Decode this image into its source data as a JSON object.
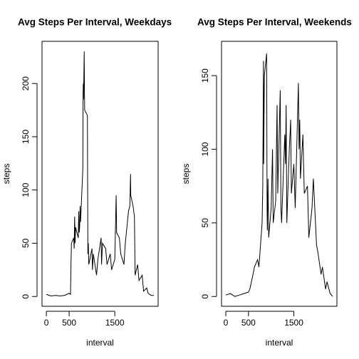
{
  "chart_data": [
    {
      "type": "line",
      "title": "Avg Steps Per Interval, Weekdays",
      "xlabel": "interval",
      "ylabel": "steps",
      "color": "#000000",
      "x": [
        0,
        100,
        200,
        300,
        400,
        500,
        530,
        540,
        550,
        600,
        610,
        620,
        630,
        640,
        700,
        710,
        720,
        730,
        740,
        750,
        800,
        805,
        810,
        815,
        830,
        835,
        840,
        900,
        905,
        910,
        920,
        930,
        1000,
        1010,
        1030,
        1100,
        1130,
        1200,
        1210,
        1230,
        1300,
        1330,
        1400,
        1430,
        1500,
        1530,
        1540,
        1600,
        1630,
        1700,
        1730,
        1800,
        1830,
        1845,
        1850,
        1900,
        1930,
        1945,
        2000,
        2030,
        2100,
        2130,
        2200,
        2230,
        2300,
        2355
      ],
      "values": [
        2,
        0.5,
        1,
        0.5,
        1,
        3,
        2,
        30,
        50,
        55,
        45,
        75,
        50,
        65,
        55,
        80,
        60,
        65,
        85,
        70,
        120,
        190,
        200,
        185,
        230,
        195,
        175,
        170,
        100,
        40,
        50,
        30,
        45,
        25,
        40,
        20,
        35,
        55,
        30,
        50,
        45,
        30,
        40,
        25,
        35,
        95,
        60,
        55,
        40,
        30,
        50,
        80,
        85,
        115,
        95,
        85,
        75,
        20,
        30,
        15,
        20,
        5,
        8,
        3,
        1,
        1
      ],
      "xlim": [
        -94.2,
        2449.2
      ],
      "ylim": [
        -9.2,
        239.6
      ],
      "xticks": [
        0,
        500,
        1500
      ],
      "yticks": [
        0,
        50,
        100,
        150,
        200
      ]
    },
    {
      "type": "line",
      "title": "Avg Steps Per Interval, Weekends",
      "xlabel": "interval",
      "ylabel": "steps",
      "color": "#000000",
      "x": [
        0,
        100,
        200,
        300,
        400,
        500,
        530,
        600,
        630,
        700,
        730,
        800,
        815,
        830,
        835,
        845,
        850,
        900,
        910,
        915,
        930,
        945,
        1000,
        1015,
        1030,
        1045,
        1100,
        1130,
        1145,
        1200,
        1215,
        1230,
        1300,
        1315,
        1330,
        1345,
        1400,
        1430,
        1445,
        1500,
        1530,
        1600,
        1615,
        1630,
        1645,
        1700,
        1730,
        1800,
        1830,
        1900,
        1930,
        2000,
        2030,
        2100,
        2130,
        2200,
        2230,
        2300,
        2355
      ],
      "values": [
        1,
        2,
        0,
        1,
        2,
        3,
        5,
        15,
        20,
        25,
        20,
        50,
        75,
        160,
        90,
        130,
        150,
        165,
        60,
        45,
        80,
        40,
        60,
        80,
        100,
        50,
        65,
        130,
        70,
        140,
        60,
        50,
        110,
        90,
        130,
        50,
        100,
        120,
        70,
        90,
        60,
        145,
        100,
        120,
        80,
        110,
        70,
        75,
        40,
        60,
        80,
        35,
        30,
        15,
        20,
        5,
        10,
        2,
        0
      ],
      "xlim": [
        -94.2,
        2449.2
      ],
      "ylim": [
        -6.66,
        173.3
      ],
      "xticks": [
        0,
        500,
        1500
      ],
      "yticks": [
        0,
        50,
        100,
        150
      ]
    }
  ]
}
